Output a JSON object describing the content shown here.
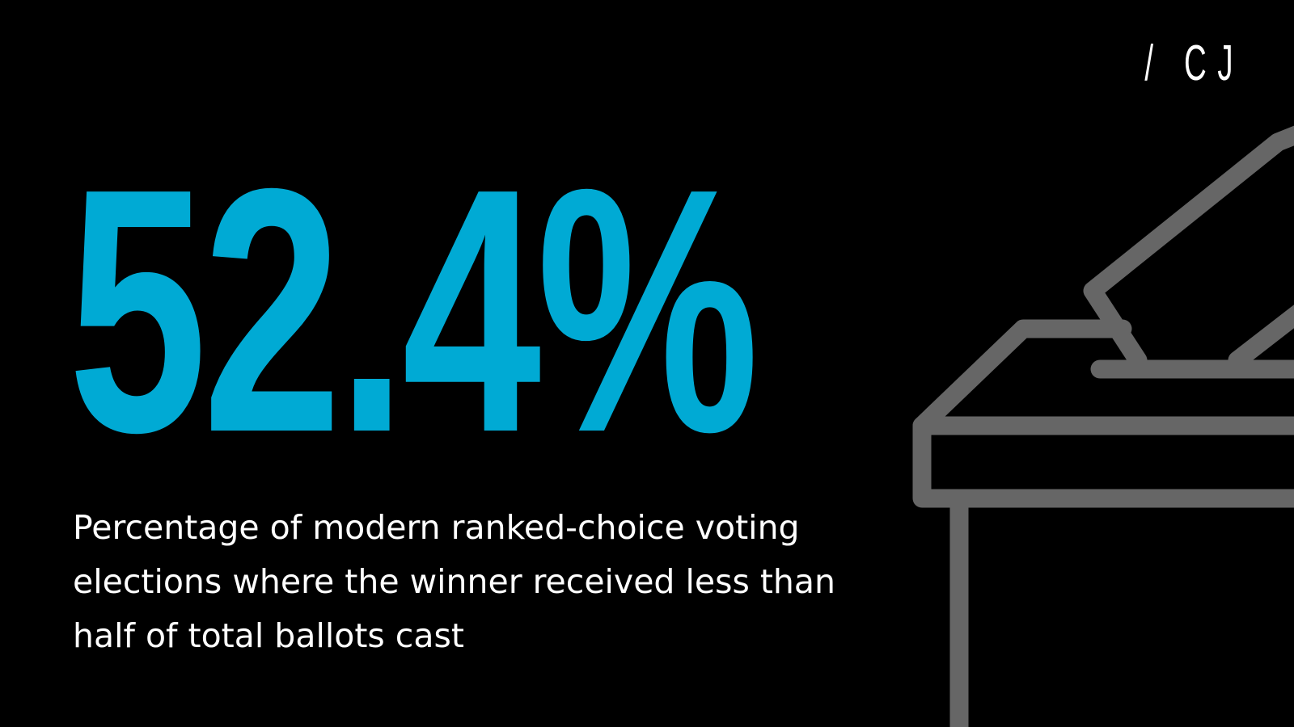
{
  "logo": {
    "text": "/ CJ"
  },
  "statistic": {
    "value": "52.4%"
  },
  "caption": {
    "text": "Percentage of modern ranked-choice voting elections where the winner received less than half of total ballots cast"
  },
  "colors": {
    "background": "#000000",
    "accent": "#00aad4",
    "text": "#ffffff",
    "icon_stroke": "#666666"
  },
  "icons": {
    "illustration": "ballot-box-icon"
  }
}
